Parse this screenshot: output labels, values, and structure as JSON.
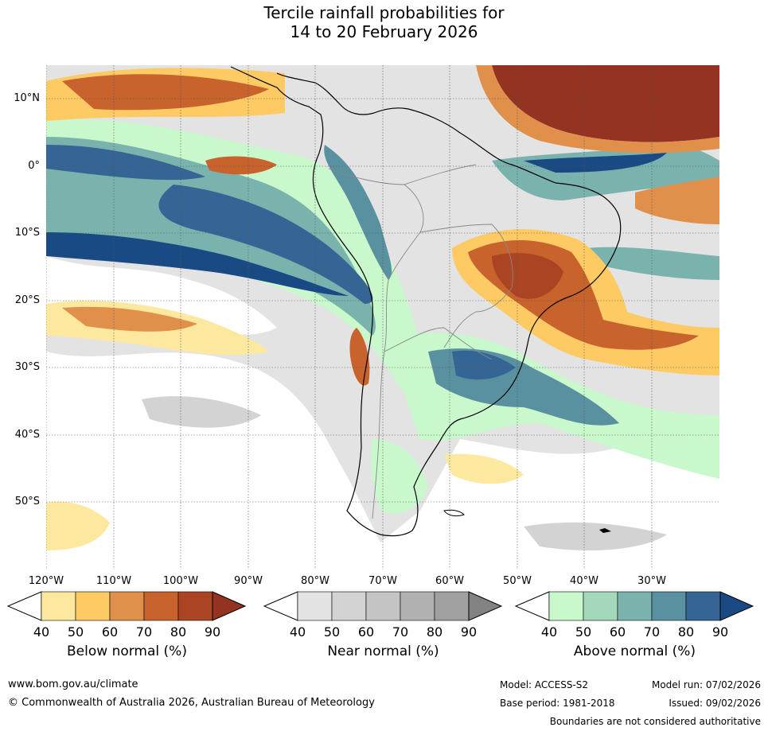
{
  "title": {
    "line1": "Tercile rainfall probabilities for",
    "line2": "14 to 20 February 2026"
  },
  "map": {
    "lat_labels": [
      "10°N",
      "0°",
      "10°S",
      "20°S",
      "30°S",
      "40°S",
      "50°S"
    ],
    "lon_labels": [
      "120°W",
      "110°W",
      "100°W",
      "90°W",
      "80°W",
      "70°W",
      "60°W",
      "50°W",
      "40°W",
      "30°W"
    ],
    "colors": {
      "below": [
        "#fde89f",
        "#fdca63",
        "#e0904a",
        "#c8632e",
        "#ab4422",
        "#943321"
      ],
      "near": [
        "#e3e3e3",
        "#d3d3d3",
        "#c4c4c4",
        "#b1b1b1",
        "#a0a0a0",
        "#828282"
      ],
      "above": [
        "#c8f8cb",
        "#a4d8bb",
        "#7ab3ae",
        "#5a91a0",
        "#346594",
        "#1a4a84"
      ],
      "coast": "#000000",
      "borders": "#888888",
      "grid": "#555555"
    }
  },
  "legend": {
    "below": {
      "label": "Below normal (%)",
      "ticks": [
        "40",
        "50",
        "60",
        "70",
        "80",
        "90"
      ]
    },
    "near": {
      "label": "Near normal (%)",
      "ticks": [
        "40",
        "50",
        "60",
        "70",
        "80",
        "90"
      ]
    },
    "above": {
      "label": "Above normal (%)",
      "ticks": [
        "40",
        "50",
        "60",
        "70",
        "80",
        "90"
      ]
    }
  },
  "footer": {
    "website": "www.bom.gov.au/climate",
    "copyright": "© Commonwealth of Australia 2026, Australian Bureau of Meteorology",
    "model": "Model: ACCESS-S2",
    "model_run": "Model run: 07/02/2026",
    "base_period": "Base period: 1981-2018",
    "issued": "Issued: 09/02/2026",
    "disclaimer": "Boundaries are not considered authoritative"
  }
}
